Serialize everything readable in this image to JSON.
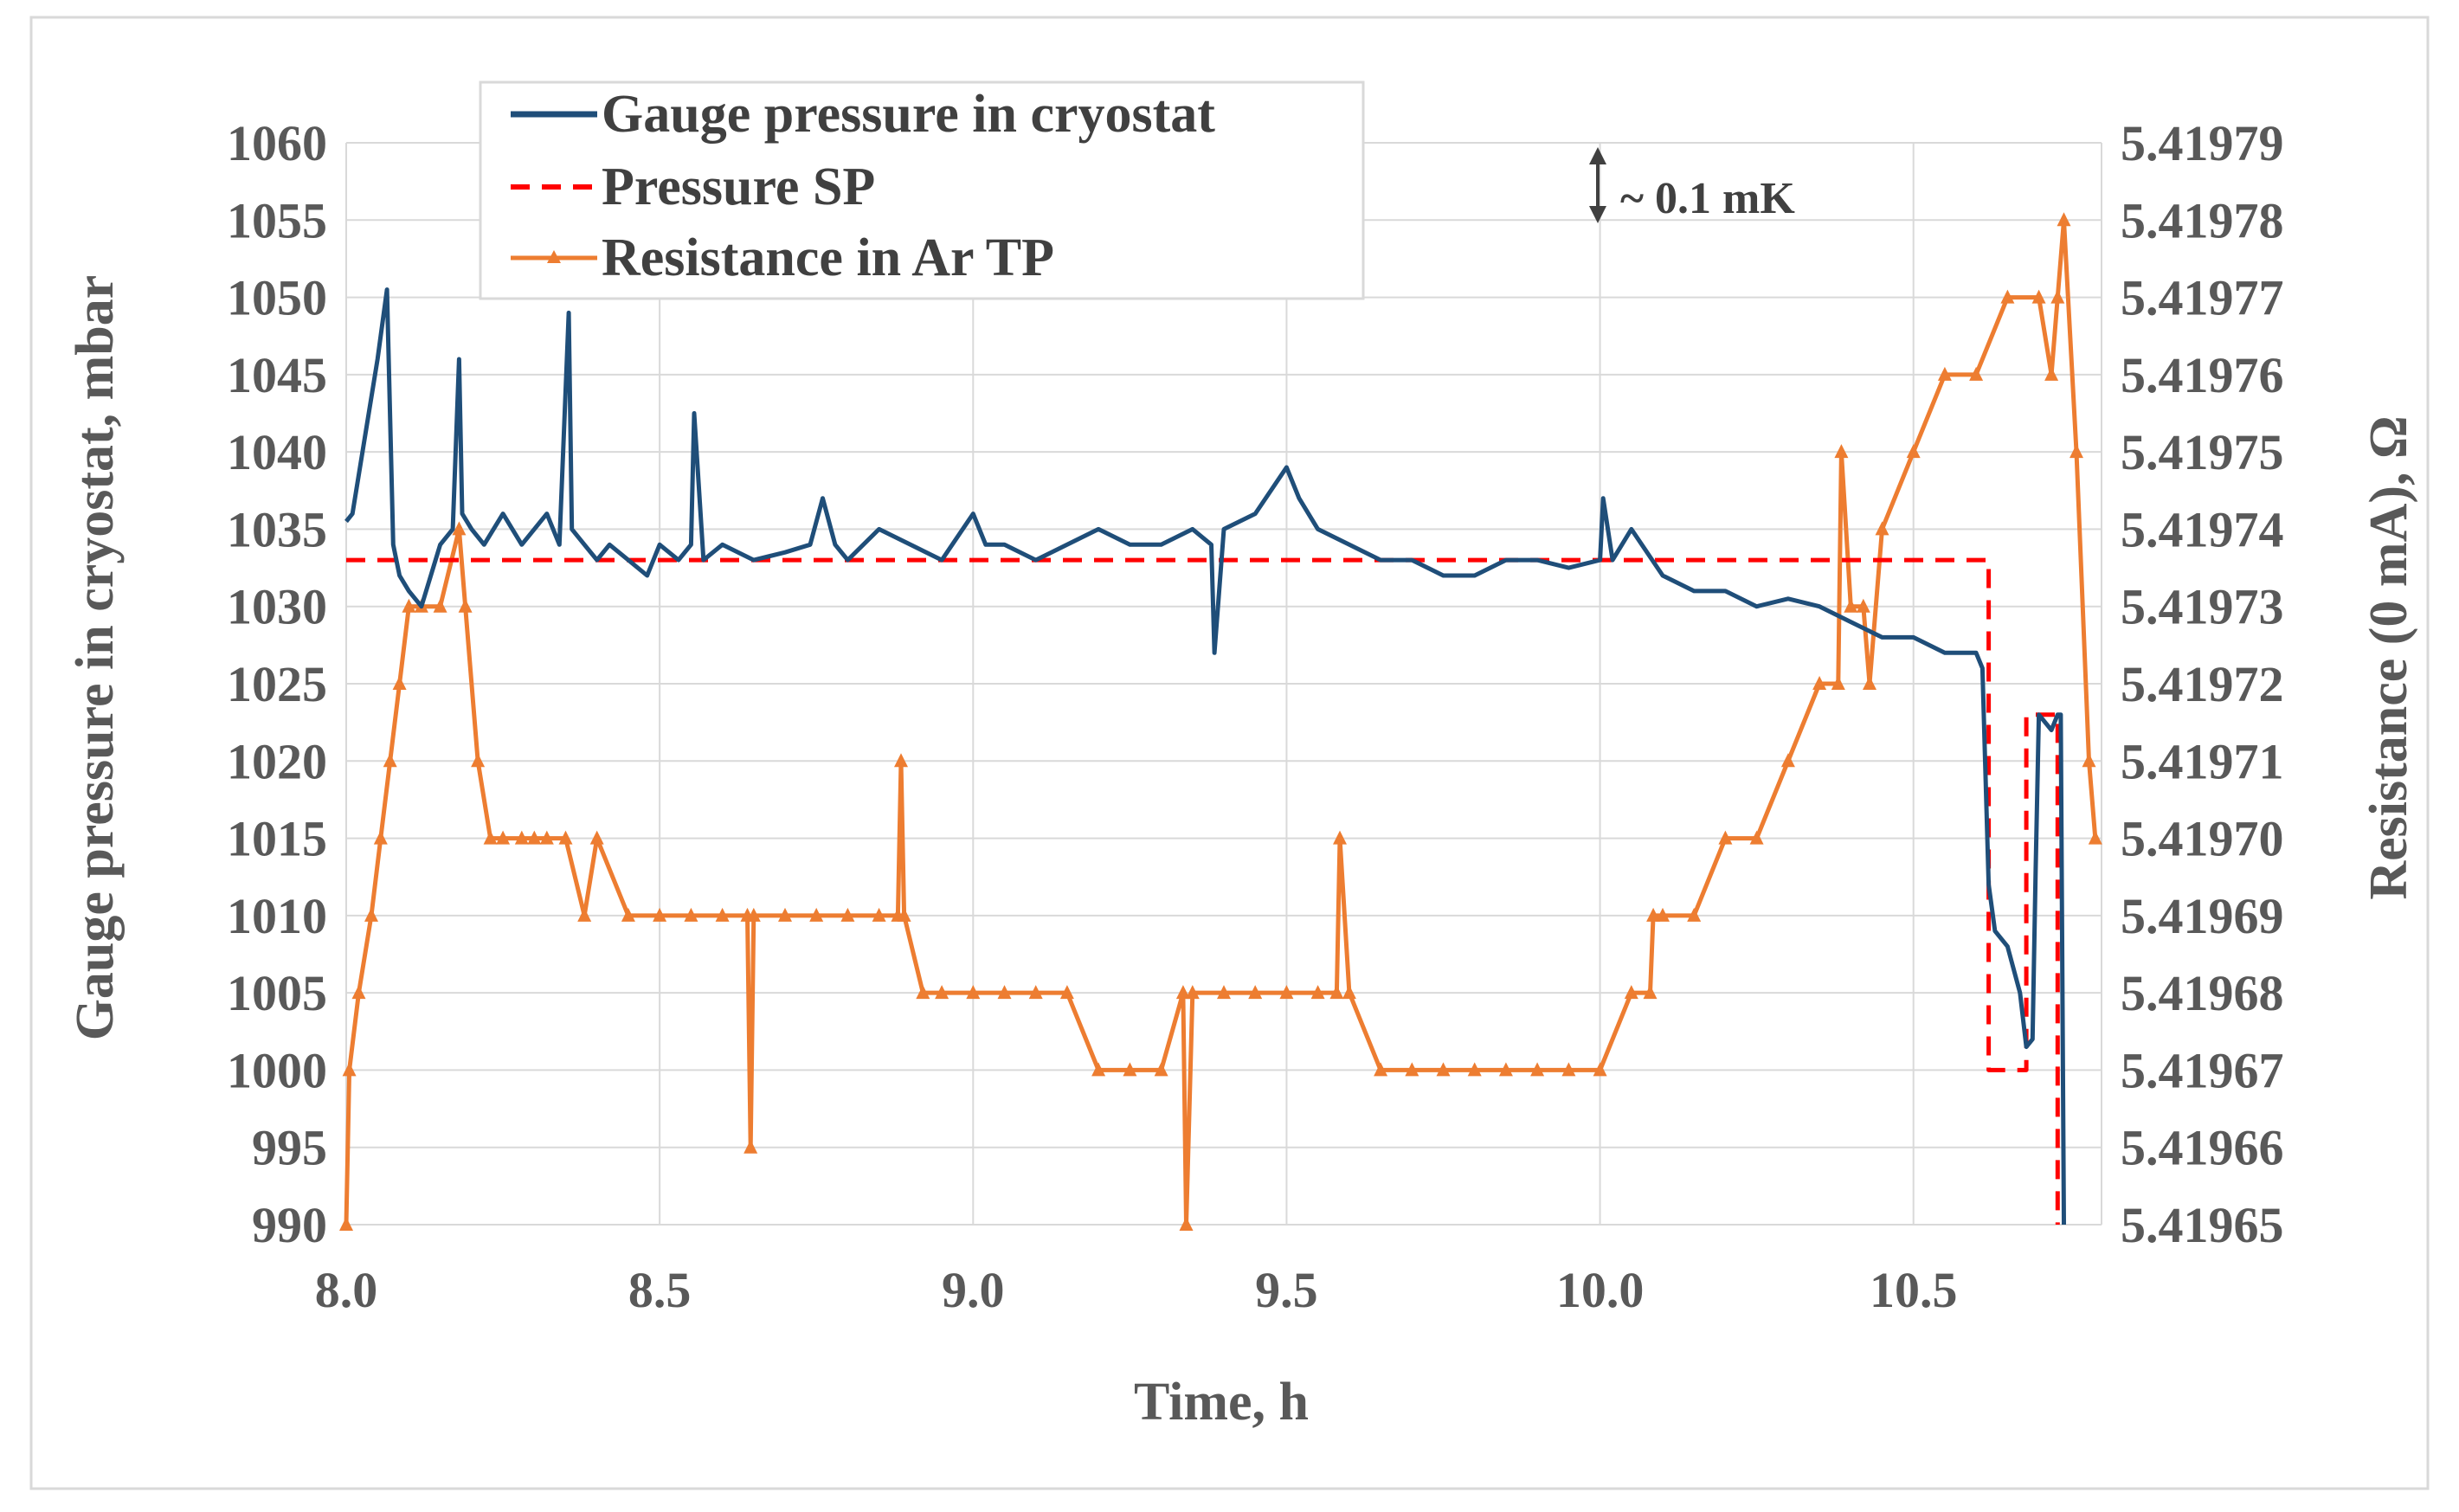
{
  "chart_data": {
    "type": "line",
    "title": "",
    "xlabel": "Time, h",
    "ylabel_left": "Gauge pressure in cryostat, mbar",
    "ylabel_right": "Resistance (0 mA), Ω",
    "xlim": [
      8.0,
      10.8
    ],
    "ylim_left": [
      990,
      1060
    ],
    "ylim_right": [
      5.41965,
      5.41979
    ],
    "grid": true,
    "legend_position": "top-left",
    "x_ticks": [
      "8.0",
      "8.5",
      "9.0",
      "9.5",
      "10.0",
      "10.5"
    ],
    "x_tick_values": [
      8.0,
      8.5,
      9.0,
      9.5,
      10.0,
      10.5
    ],
    "y_left_ticks": [
      "990",
      "995",
      "1000",
      "1005",
      "1010",
      "1015",
      "1020",
      "1025",
      "1030",
      "1035",
      "1040",
      "1045",
      "1050",
      "1055",
      "1060"
    ],
    "y_left_tick_values": [
      990,
      995,
      1000,
      1005,
      1010,
      1015,
      1020,
      1025,
      1030,
      1035,
      1040,
      1045,
      1050,
      1055,
      1060
    ],
    "y_right_ticks": [
      "5.41965",
      "5.41966",
      "5.41967",
      "5.41968",
      "5.41969",
      "5.41970",
      "5.41971",
      "5.41972",
      "5.41973",
      "5.41974",
      "5.41975",
      "5.41976",
      "5.41977",
      "5.41978",
      "5.41979"
    ],
    "y_right_tick_values": [
      5.41965,
      5.41966,
      5.41967,
      5.41968,
      5.41969,
      5.4197,
      5.41971,
      5.41972,
      5.41973,
      5.41974,
      5.41975,
      5.41976,
      5.41977,
      5.41978,
      5.41979
    ],
    "annotation": {
      "text": "~ 0.1 mK",
      "x": 10.0,
      "y_from": 5.41978,
      "y_to": 5.41979
    },
    "series": [
      {
        "name": "Gauge pressure in cryostat",
        "axis": "left",
        "color": "#1f4e79",
        "style": "solid",
        "marker": "none",
        "x": [
          8.0,
          8.01,
          8.03,
          8.05,
          8.065,
          8.075,
          8.085,
          8.1,
          8.12,
          8.15,
          8.17,
          8.18,
          8.185,
          8.2,
          8.22,
          8.25,
          8.28,
          8.3,
          8.32,
          8.34,
          8.355,
          8.36,
          8.38,
          8.4,
          8.42,
          8.45,
          8.48,
          8.5,
          8.53,
          8.55,
          8.555,
          8.57,
          8.6,
          8.65,
          8.7,
          8.74,
          8.76,
          8.78,
          8.8,
          8.85,
          8.9,
          8.95,
          9.0,
          9.02,
          9.05,
          9.1,
          9.15,
          9.2,
          9.25,
          9.3,
          9.35,
          9.38,
          9.385,
          9.4,
          9.45,
          9.5,
          9.52,
          9.55,
          9.6,
          9.65,
          9.7,
          9.75,
          9.8,
          9.85,
          9.9,
          9.95,
          10.0,
          10.005,
          10.02,
          10.05,
          10.1,
          10.15,
          10.2,
          10.25,
          10.3,
          10.35,
          10.4,
          10.45,
          10.5,
          10.55,
          10.6,
          10.61,
          10.62,
          10.63,
          10.65,
          10.67,
          10.68,
          10.69,
          10.695,
          10.7,
          10.72,
          10.73,
          10.735,
          10.74
        ],
        "values": [
          1035.5,
          1036,
          1041,
          1046,
          1050.5,
          1034,
          1032,
          1031,
          1030,
          1034,
          1035,
          1046,
          1036,
          1035,
          1034,
          1036,
          1034,
          1035,
          1036,
          1034,
          1049,
          1035,
          1034,
          1033,
          1034,
          1033,
          1032,
          1034,
          1033,
          1034,
          1042.5,
          1033,
          1034,
          1033,
          1033.5,
          1034,
          1037,
          1034,
          1033,
          1035,
          1034,
          1033,
          1036,
          1034,
          1034,
          1033,
          1034,
          1035,
          1034,
          1034,
          1035,
          1034,
          1027,
          1035,
          1036,
          1039,
          1037,
          1035,
          1034,
          1033,
          1033,
          1032,
          1032,
          1033,
          1033,
          1032.5,
          1033,
          1037,
          1033,
          1035,
          1032,
          1031,
          1031,
          1030,
          1030.5,
          1030,
          1029,
          1028,
          1028,
          1027,
          1027,
          1026,
          1012,
          1009,
          1008,
          1005,
          1001.5,
          1002,
          1013,
          1023,
          1022,
          1023,
          1023,
          990
        ]
      },
      {
        "name": "Pressure SP",
        "axis": "left",
        "color": "#ff0000",
        "style": "dashed",
        "marker": "none",
        "x": [
          8.0,
          10.62,
          10.62,
          10.68,
          10.68,
          10.73,
          10.73
        ],
        "values": [
          1033,
          1033,
          1000,
          1000,
          1023,
          1023,
          990
        ]
      },
      {
        "name": "Resistance in Ar TP",
        "axis": "right",
        "color": "#ed7d31",
        "style": "solid",
        "marker": "triangle",
        "x": [
          8.0,
          8.005,
          8.02,
          8.04,
          8.055,
          8.07,
          8.085,
          8.1,
          8.12,
          8.15,
          8.18,
          8.19,
          8.21,
          8.23,
          8.25,
          8.28,
          8.3,
          8.32,
          8.35,
          8.38,
          8.4,
          8.45,
          8.5,
          8.55,
          8.6,
          8.64,
          8.645,
          8.65,
          8.7,
          8.75,
          8.8,
          8.85,
          8.88,
          8.885,
          8.89,
          8.92,
          8.95,
          9.0,
          9.05,
          9.1,
          9.15,
          9.2,
          9.25,
          9.3,
          9.335,
          9.34,
          9.35,
          9.4,
          9.45,
          9.5,
          9.55,
          9.58,
          9.585,
          9.6,
          9.65,
          9.7,
          9.75,
          9.8,
          9.85,
          9.9,
          9.95,
          10.0,
          10.05,
          10.08,
          10.085,
          10.1,
          10.15,
          10.2,
          10.25,
          10.3,
          10.35,
          10.38,
          10.385,
          10.4,
          10.42,
          10.43,
          10.45,
          10.5,
          10.55,
          10.6,
          10.65,
          10.7,
          10.72,
          10.73,
          10.74,
          10.76,
          10.78,
          10.79
        ],
        "values": [
          5.41965,
          5.41967,
          5.41968,
          5.41969,
          5.4197,
          5.41971,
          5.41972,
          5.41973,
          5.41973,
          5.41973,
          5.41974,
          5.41973,
          5.41971,
          5.4197,
          5.4197,
          5.4197,
          5.4197,
          5.4197,
          5.4197,
          5.41969,
          5.4197,
          5.41969,
          5.41969,
          5.41969,
          5.41969,
          5.41969,
          5.41966,
          5.41969,
          5.41969,
          5.41969,
          5.41969,
          5.41969,
          5.41969,
          5.41971,
          5.41969,
          5.41968,
          5.41968,
          5.41968,
          5.41968,
          5.41968,
          5.41968,
          5.41967,
          5.41967,
          5.41967,
          5.41968,
          5.41965,
          5.41968,
          5.41968,
          5.41968,
          5.41968,
          5.41968,
          5.41968,
          5.4197,
          5.41968,
          5.41967,
          5.41967,
          5.41967,
          5.41967,
          5.41967,
          5.41967,
          5.41967,
          5.41967,
          5.41968,
          5.41968,
          5.41969,
          5.41969,
          5.41969,
          5.4197,
          5.4197,
          5.41971,
          5.41972,
          5.41972,
          5.41975,
          5.41973,
          5.41973,
          5.41972,
          5.41974,
          5.41975,
          5.41976,
          5.41976,
          5.41977,
          5.41977,
          5.41976,
          5.41977,
          5.41978,
          5.41975,
          5.41971,
          5.4197
        ]
      }
    ]
  },
  "legend": {
    "items": [
      {
        "label": "Gauge pressure in cryostat",
        "color": "#1f4e79",
        "style": "solid",
        "marker": "none"
      },
      {
        "label": "Pressure SP",
        "color": "#ff0000",
        "style": "dashed",
        "marker": "none"
      },
      {
        "label": "Resistance in Ar TP",
        "color": "#ed7d31",
        "style": "solid",
        "marker": "triangle"
      }
    ]
  },
  "colors": {
    "axis_text": "#595959",
    "grid": "#d9d9d9",
    "frame": "#d9d9d9"
  }
}
